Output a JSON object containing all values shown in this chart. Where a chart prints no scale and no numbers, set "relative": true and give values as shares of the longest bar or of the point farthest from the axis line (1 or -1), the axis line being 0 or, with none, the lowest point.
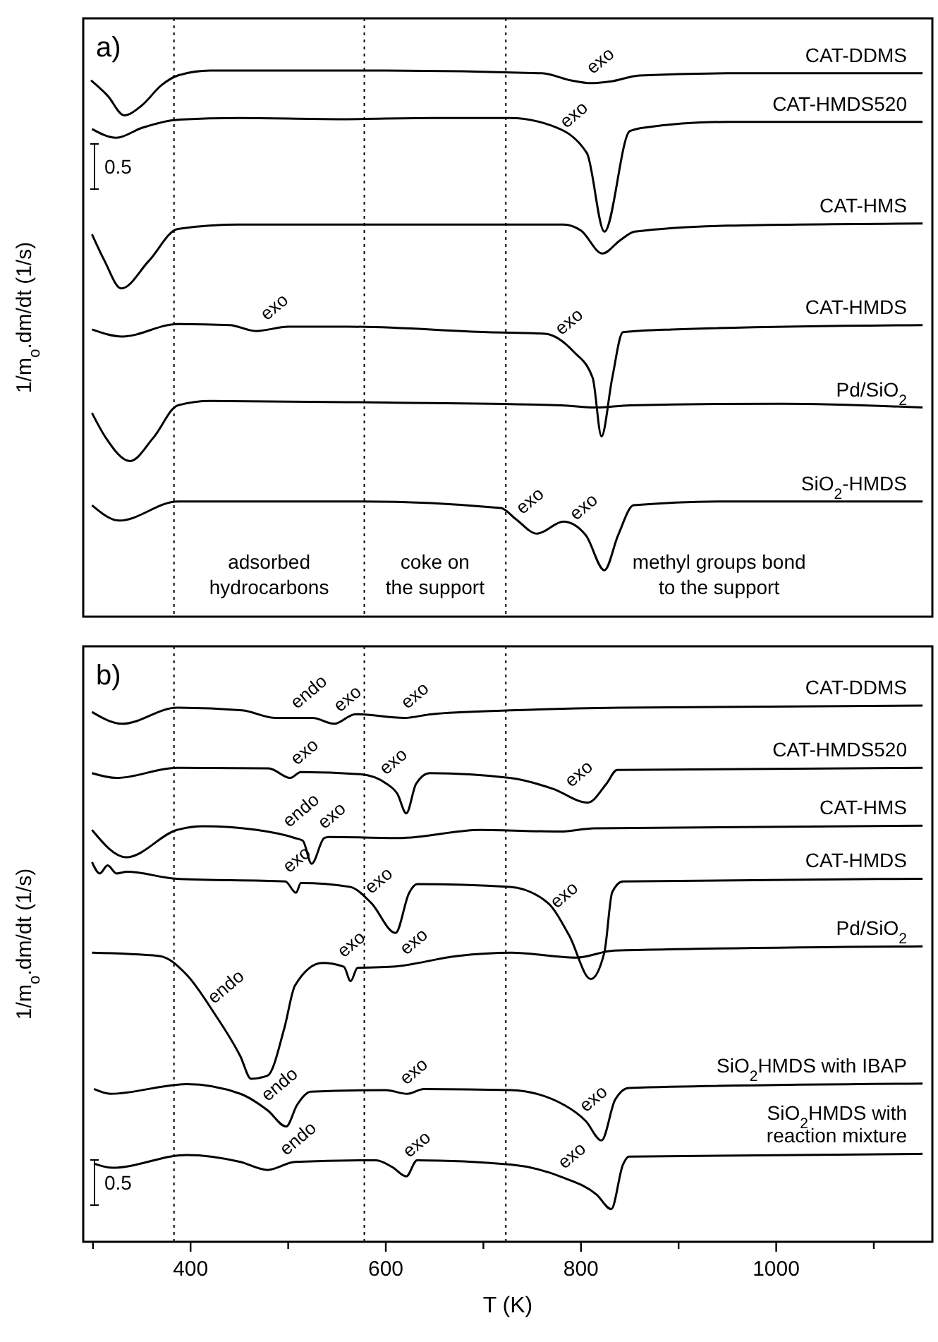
{
  "chart_data": [
    {
      "type": "line",
      "title": "a)",
      "ylabel": "1/m$_{o}$.dm/dt (1/s)",
      "relative": true,
      "xlim": [
        290,
        1160
      ],
      "tick_labels": false,
      "ref_lines": [
        {
          "axis": "x",
          "value": 383,
          "line_style": "dotted"
        },
        {
          "axis": "x",
          "value": 578,
          "line_style": "dotted"
        },
        {
          "axis": "x",
          "value": 723,
          "line_style": "dotted"
        }
      ],
      "annotations": [
        "adsorbed\nhydrocarbons",
        "coke on\nthe support",
        "methyl groups bond\nto the support",
        "0.5",
        {
          "text": "exo",
          "x": 812,
          "y": 0.977
        },
        {
          "text": "exo",
          "x": 785,
          "y": 0.878
        },
        {
          "text": "exo",
          "x": 478,
          "y": 0.526
        },
        {
          "text": "exo",
          "x": 780,
          "y": 0.499
        },
        {
          "text": "exo",
          "x": 740,
          "y": 0.171
        },
        {
          "text": "exo",
          "x": 795,
          "y": 0.16
        }
      ],
      "series": [
        {
          "name": "CAT-DDMS",
          "color": "#000000",
          "x": [
            298,
            315,
            332,
            350,
            370,
            387,
            420,
            600,
            760,
            790,
            810,
            830,
            860,
            950,
            1150
          ],
          "values": [
            0.982,
            0.954,
            0.918,
            0.936,
            0.973,
            0.991,
            1.0,
            1.0,
            0.995,
            0.982,
            0.977,
            0.98,
            0.991,
            0.995,
            0.995
          ]
        },
        {
          "name": "CAT-HMDS520",
          "color": "#000000",
          "x": [
            299,
            324,
            350,
            387,
            450,
            550,
            650,
            727,
            770,
            806,
            824,
            850,
            867,
            950,
            1150
          ],
          "values": [
            0.893,
            0.877,
            0.895,
            0.91,
            0.913,
            0.911,
            0.913,
            0.913,
            0.899,
            0.849,
            0.705,
            0.889,
            0.896,
            0.906,
            0.906
          ]
        },
        {
          "name": "CAT-HMS",
          "color": "#000000",
          "x": [
            299,
            312,
            329,
            357,
            387,
            450,
            600,
            782,
            800,
            822,
            840,
            855,
            950,
            1150
          ],
          "values": [
            0.7,
            0.651,
            0.601,
            0.651,
            0.71,
            0.718,
            0.718,
            0.718,
            0.707,
            0.665,
            0.689,
            0.705,
            0.716,
            0.72
          ]
        },
        {
          "name": "CAT-HMDS",
          "color": "#000000",
          "x": [
            299,
            330,
            387,
            440,
            467,
            500,
            562,
            704,
            763,
            792,
            812,
            821,
            832,
            843,
            893,
            1150
          ],
          "values": [
            0.526,
            0.513,
            0.536,
            0.534,
            0.523,
            0.531,
            0.531,
            0.521,
            0.518,
            0.486,
            0.437,
            0.33,
            0.437,
            0.521,
            0.526,
            0.534
          ]
        },
        {
          "name": "Pd/SiO$_{2}$",
          "color": "#000000",
          "x": [
            299,
            313,
            338,
            362,
            387,
            420,
            600,
            780,
            815,
            850,
            1007,
            1150
          ],
          "values": [
            0.373,
            0.328,
            0.285,
            0.328,
            0.387,
            0.395,
            0.392,
            0.387,
            0.383,
            0.387,
            0.39,
            0.383
          ]
        },
        {
          "name": "SiO$_{2}$-HMDS",
          "color": "#000000",
          "x": [
            299,
            327,
            387,
            500,
            575,
            718,
            733,
            755,
            782,
            805,
            824,
            838,
            854,
            950,
            1150
          ],
          "values": [
            0.204,
            0.176,
            0.211,
            0.211,
            0.211,
            0.199,
            0.179,
            0.152,
            0.174,
            0.149,
            0.085,
            0.149,
            0.204,
            0.211,
            0.211
          ]
        }
      ]
    },
    {
      "type": "line",
      "title": "b)",
      "xlabel": "T (K)",
      "ylabel": "1/m$_{o}$.dm/dt (1/s)",
      "relative": true,
      "xlim": [
        290,
        1160
      ],
      "tick_labels": "x",
      "xticks": [
        {
          "value": 300,
          "label": null
        },
        400,
        {
          "value": 500,
          "label": null
        },
        600,
        {
          "value": 700,
          "label": null
        },
        800,
        {
          "value": 900,
          "label": null
        },
        1000,
        {
          "value": 1100,
          "label": null
        }
      ],
      "ref_lines": [
        {
          "axis": "x",
          "value": 383,
          "line_style": "dotted"
        },
        {
          "axis": "x",
          "value": 578,
          "line_style": "dotted"
        },
        {
          "axis": "x",
          "value": 723,
          "line_style": "dotted"
        }
      ],
      "annotations": [
        "0.5",
        {
          "text": "endo",
          "x": 509,
          "y": 0.977
        },
        {
          "text": "exo",
          "x": 553,
          "y": 0.971
        },
        {
          "text": "exo",
          "x": 622,
          "y": 0.977
        },
        {
          "text": "exo",
          "x": 509,
          "y": 0.872
        },
        {
          "text": "exo",
          "x": 600,
          "y": 0.854
        },
        {
          "text": "exo",
          "x": 790,
          "y": 0.831
        },
        {
          "text": "endo",
          "x": 501,
          "y": 0.756
        },
        {
          "text": "exo",
          "x": 537,
          "y": 0.753
        },
        {
          "text": "exo",
          "x": 501,
          "y": 0.671
        },
        {
          "text": "exo",
          "x": 585,
          "y": 0.632
        },
        {
          "text": "exo",
          "x": 775,
          "y": 0.605
        },
        {
          "text": "endo",
          "x": 424,
          "y": 0.427
        },
        {
          "text": "exo",
          "x": 557,
          "y": 0.513
        },
        {
          "text": "exo",
          "x": 621,
          "y": 0.518
        },
        {
          "text": "endo",
          "x": 479,
          "y": 0.245
        },
        {
          "text": "exo",
          "x": 621,
          "y": 0.276
        },
        {
          "text": "exo",
          "x": 805,
          "y": 0.225
        },
        {
          "text": "endo",
          "x": 498,
          "y": 0.144
        },
        {
          "text": "exo",
          "x": 624,
          "y": 0.14
        },
        {
          "text": "exo",
          "x": 783,
          "y": 0.119
        }
      ],
      "series": [
        {
          "name": "CAT-DDMS",
          "color": "#000000",
          "x": [
            299,
            330,
            386,
            453,
            487,
            525,
            547,
            569,
            619,
            647,
            727,
            840,
            1150
          ],
          "values": [
            0.988,
            0.966,
            0.996,
            0.991,
            0.977,
            0.977,
            0.966,
            0.984,
            0.977,
            0.984,
            0.991,
            0.996,
            1.0
          ]
        },
        {
          "name": "CAT-HMDS520",
          "color": "#000000",
          "x": [
            299,
            324,
            386,
            480,
            502,
            513,
            574,
            601,
            612,
            621,
            631,
            645,
            727,
            771,
            807,
            826,
            837,
            1150
          ],
          "values": [
            0.874,
            0.865,
            0.884,
            0.883,
            0.865,
            0.876,
            0.872,
            0.854,
            0.835,
            0.799,
            0.854,
            0.874,
            0.865,
            0.845,
            0.819,
            0.854,
            0.88,
            0.884
          ]
        },
        {
          "name": "CAT-HMS",
          "color": "#000000",
          "x": [
            299,
            334,
            386,
            413,
            468,
            507,
            515,
            524,
            537,
            542,
            614,
            697,
            779,
            813,
            1150
          ],
          "values": [
            0.768,
            0.717,
            0.768,
            0.775,
            0.768,
            0.753,
            0.748,
            0.705,
            0.753,
            0.755,
            0.753,
            0.768,
            0.765,
            0.771,
            0.776
          ]
        },
        {
          "name": "CAT-HMDS",
          "color": "#000000",
          "x": [
            299,
            307,
            315,
            324,
            335,
            386,
            497,
            508,
            513,
            563,
            585,
            610,
            624,
            632,
            727,
            766,
            788,
            810,
            824,
            832,
            843,
            1150
          ],
          "values": [
            0.708,
            0.687,
            0.702,
            0.687,
            0.69,
            0.677,
            0.672,
            0.651,
            0.669,
            0.662,
            0.632,
            0.576,
            0.651,
            0.667,
            0.662,
            0.632,
            0.571,
            0.49,
            0.54,
            0.652,
            0.672,
            0.677
          ]
        },
        {
          "name": "Pd/SiO$_{2}$",
          "color": "#000000",
          "x": [
            299,
            368,
            396,
            424,
            451,
            462,
            479,
            496,
            507,
            535,
            557,
            564,
            571,
            607,
            673,
            729,
            795,
            834,
            1150
          ],
          "values": [
            0.539,
            0.533,
            0.498,
            0.427,
            0.346,
            0.304,
            0.31,
            0.398,
            0.478,
            0.52,
            0.513,
            0.486,
            0.511,
            0.513,
            0.533,
            0.539,
            0.53,
            0.543,
            0.551
          ]
        },
        {
          "name": "SiO$_{2}$HMDS with IBAP",
          "color": "#000000",
          "x": [
            301,
            318,
            396,
            451,
            479,
            498,
            509,
            523,
            600,
            622,
            639,
            728,
            783,
            805,
            821,
            835,
            849,
            1150
          ],
          "values": [
            0.285,
            0.276,
            0.294,
            0.276,
            0.245,
            0.215,
            0.255,
            0.28,
            0.283,
            0.276,
            0.285,
            0.283,
            0.255,
            0.225,
            0.189,
            0.265,
            0.287,
            0.295
          ]
        },
        {
          "name": "SiO$_{2}$HMDS with reaction mixture",
          "color": "#000000",
          "x": [
            301,
            320,
            396,
            451,
            479,
            507,
            590,
            607,
            621,
            632,
            728,
            783,
            816,
            831,
            843,
            849,
            1150
          ],
          "values": [
            0.146,
            0.138,
            0.162,
            0.149,
            0.134,
            0.149,
            0.152,
            0.139,
            0.122,
            0.152,
            0.144,
            0.119,
            0.088,
            0.061,
            0.144,
            0.159,
            0.164
          ]
        }
      ]
    }
  ]
}
